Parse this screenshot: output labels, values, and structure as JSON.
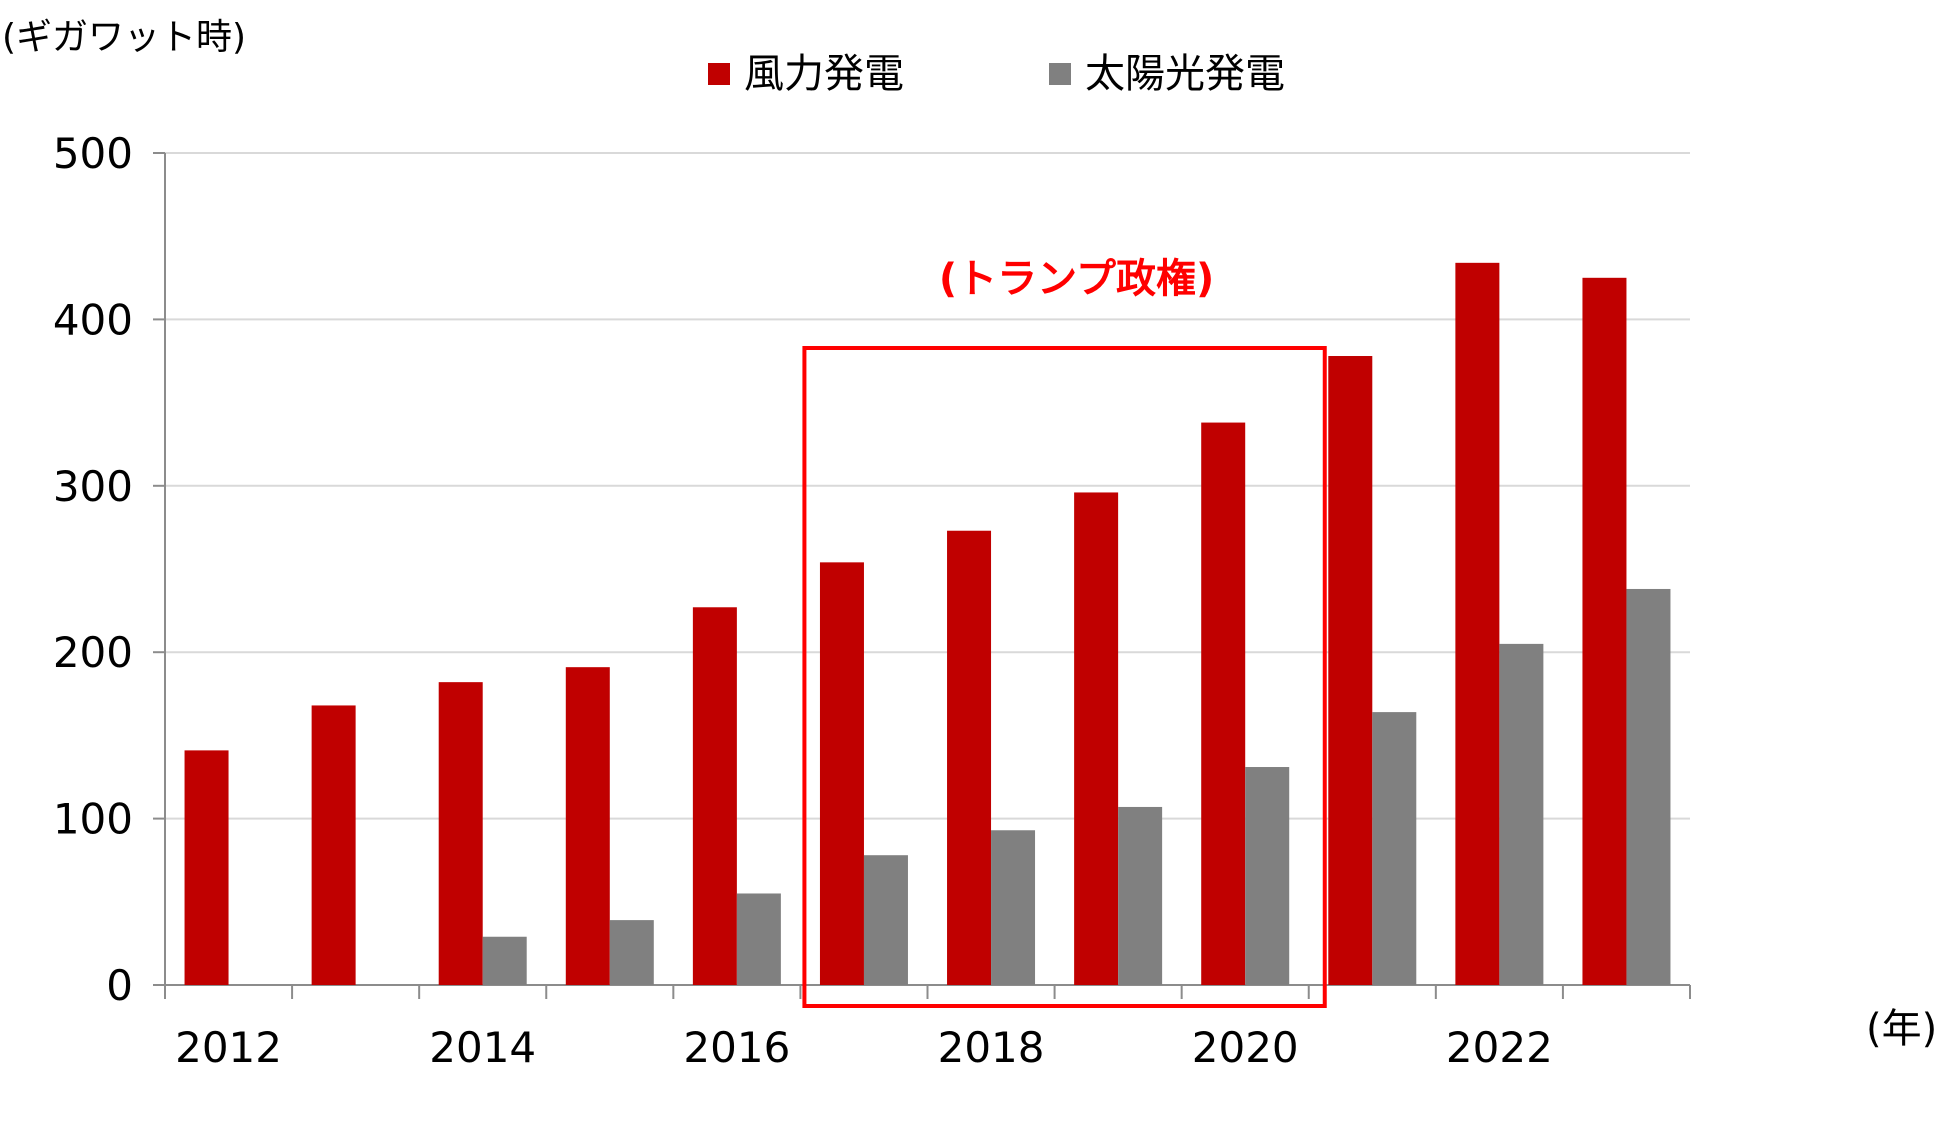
{
  "chart_data": {
    "type": "bar",
    "y_unit_label": "(ギガワット時)",
    "x_unit_label": "(年)",
    "legend_position": "top-center",
    "grid": true,
    "ylim": [
      0,
      500
    ],
    "y_ticks": [
      "0",
      "100",
      "200",
      "300",
      "400",
      "500"
    ],
    "y_tick_values": [
      0,
      100,
      200,
      300,
      400,
      500
    ],
    "categories": [
      "2012",
      "2013",
      "2014",
      "2015",
      "2016",
      "2017",
      "2018",
      "2019",
      "2020",
      "2021",
      "2022",
      "2023"
    ],
    "x_tick_labels": [
      "2012",
      "",
      "2014",
      "",
      "2016",
      "",
      "2018",
      "",
      "2020",
      "",
      "2022",
      ""
    ],
    "series": [
      {
        "name": "風力発電",
        "color": "#C00000",
        "values": [
          141,
          168,
          182,
          191,
          227,
          254,
          273,
          296,
          338,
          378,
          434,
          425
        ]
      },
      {
        "name": "太陽光発電",
        "color": "#808080",
        "values": [
          0,
          0,
          29,
          39,
          55,
          78,
          93,
          107,
          131,
          164,
          205,
          238
        ]
      }
    ],
    "annotation": {
      "text": "(トランプ政権)",
      "color": "#FF0000",
      "highlight_categories": [
        "2017",
        "2018",
        "2019",
        "2020"
      ]
    }
  }
}
